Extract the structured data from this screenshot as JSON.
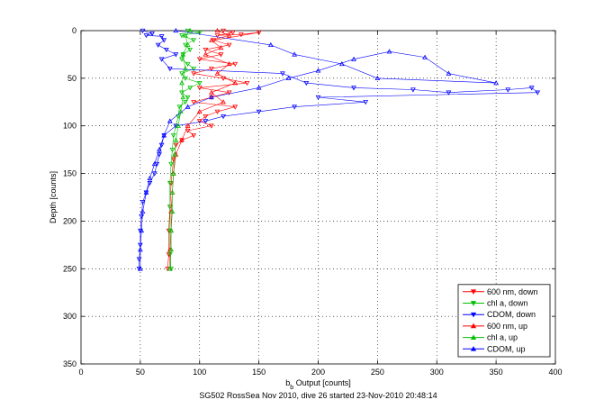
{
  "chart_data": {
    "type": "scatter",
    "xlabel": "b_b Output [counts]",
    "xlabel_main": "b",
    "xlabel_sub": "b",
    "xlabel_rest": " Output [counts]",
    "ylabel": "Depth [counts]",
    "caption": "SG502 RossSea Nov 2010, dive 26 started 23-Nov-2010 20:48:14",
    "xlim": [
      0,
      400
    ],
    "ylim": [
      0,
      350
    ],
    "y_reversed": true,
    "xticks": [
      0,
      50,
      100,
      150,
      200,
      250,
      300,
      350,
      400
    ],
    "yticks": [
      0,
      50,
      100,
      150,
      200,
      250,
      300,
      350
    ],
    "grid": true,
    "legend_position": "lower-right",
    "series": [
      {
        "name": "600 nm, down",
        "color": "#ff0000",
        "marker": "triangle-down",
        "points": [
          [
            120,
            0
          ],
          [
            128,
            2
          ],
          [
            115,
            5
          ],
          [
            135,
            4
          ],
          [
            150,
            2
          ],
          [
            112,
            10
          ],
          [
            125,
            15
          ],
          [
            105,
            20
          ],
          [
            118,
            25
          ],
          [
            100,
            30
          ],
          [
            130,
            35
          ],
          [
            110,
            40
          ],
          [
            95,
            45
          ],
          [
            120,
            50
          ],
          [
            140,
            55
          ],
          [
            100,
            60
          ],
          [
            125,
            65
          ],
          [
            110,
            70
          ],
          [
            95,
            75
          ],
          [
            130,
            80
          ],
          [
            115,
            85
          ],
          [
            105,
            90
          ],
          [
            100,
            95
          ],
          [
            110,
            100
          ],
          [
            90,
            105
          ],
          [
            95,
            110
          ],
          [
            85,
            115
          ],
          [
            80,
            120
          ],
          [
            78,
            135
          ],
          [
            76,
            160
          ],
          [
            75,
            185
          ],
          [
            74,
            210
          ],
          [
            74,
            235
          ],
          [
            73,
            250
          ]
        ]
      },
      {
        "name": "chl a, down",
        "color": "#00c000",
        "marker": "triangle-down",
        "points": [
          [
            90,
            0
          ],
          [
            100,
            2
          ],
          [
            85,
            5
          ],
          [
            95,
            10
          ],
          [
            88,
            15
          ],
          [
            92,
            20
          ],
          [
            86,
            25
          ],
          [
            85,
            30
          ],
          [
            90,
            35
          ],
          [
            95,
            40
          ],
          [
            85,
            45
          ],
          [
            88,
            50
          ],
          [
            100,
            55
          ],
          [
            92,
            60
          ],
          [
            85,
            65
          ],
          [
            90,
            70
          ],
          [
            88,
            75
          ],
          [
            83,
            80
          ],
          [
            82,
            90
          ],
          [
            80,
            100
          ],
          [
            78,
            110
          ],
          [
            77,
            125
          ],
          [
            76,
            140
          ],
          [
            75,
            160
          ],
          [
            75,
            185
          ],
          [
            75,
            210
          ],
          [
            75,
            235
          ],
          [
            76,
            250
          ]
        ]
      },
      {
        "name": "CDOM, down",
        "color": "#0000ff",
        "marker": "triangle-down",
        "points": [
          [
            52,
            0
          ],
          [
            60,
            3
          ],
          [
            55,
            5
          ],
          [
            68,
            6
          ],
          [
            70,
            10
          ],
          [
            65,
            15
          ],
          [
            72,
            20
          ],
          [
            80,
            25
          ],
          [
            68,
            30
          ],
          [
            75,
            40
          ],
          [
            170,
            45
          ],
          [
            190,
            55
          ],
          [
            230,
            60
          ],
          [
            280,
            62
          ],
          [
            310,
            65
          ],
          [
            360,
            62
          ],
          [
            380,
            60
          ],
          [
            385,
            65
          ],
          [
            200,
            70
          ],
          [
            240,
            75
          ],
          [
            180,
            80
          ],
          [
            150,
            85
          ],
          [
            120,
            90
          ],
          [
            105,
            95
          ],
          [
            80,
            100
          ],
          [
            70,
            110
          ],
          [
            68,
            120
          ],
          [
            66,
            130
          ],
          [
            64,
            140
          ],
          [
            62,
            150
          ],
          [
            58,
            160
          ],
          [
            55,
            170
          ],
          [
            52,
            180
          ],
          [
            51,
            195
          ],
          [
            50,
            210
          ],
          [
            50,
            225
          ],
          [
            49,
            240
          ],
          [
            49,
            250
          ]
        ]
      },
      {
        "name": "600 nm, up",
        "color": "#ff0000",
        "marker": "triangle-up",
        "points": [
          [
            75,
            250
          ],
          [
            75,
            230
          ],
          [
            76,
            210
          ],
          [
            76,
            190
          ],
          [
            77,
            170
          ],
          [
            78,
            150
          ],
          [
            80,
            130
          ],
          [
            85,
            115
          ],
          [
            90,
            100
          ],
          [
            100,
            85
          ],
          [
            120,
            75
          ],
          [
            110,
            65
          ],
          [
            130,
            55
          ],
          [
            115,
            45
          ],
          [
            125,
            35
          ],
          [
            105,
            25
          ],
          [
            118,
            18
          ],
          [
            110,
            10
          ],
          [
            125,
            5
          ],
          [
            115,
            0
          ]
        ]
      },
      {
        "name": "chl a, up",
        "color": "#00c000",
        "marker": "triangle-up",
        "points": [
          [
            75,
            250
          ],
          [
            76,
            230
          ],
          [
            76,
            210
          ],
          [
            77,
            190
          ],
          [
            77,
            170
          ],
          [
            78,
            150
          ],
          [
            79,
            130
          ],
          [
            80,
            115
          ],
          [
            82,
            100
          ],
          [
            84,
            85
          ],
          [
            86,
            70
          ],
          [
            85,
            55
          ],
          [
            88,
            40
          ],
          [
            86,
            25
          ],
          [
            90,
            15
          ],
          [
            88,
            5
          ],
          [
            92,
            0
          ]
        ]
      },
      {
        "name": "CDOM, up",
        "color": "#0000ff",
        "marker": "triangle-up",
        "points": [
          [
            50,
            250
          ],
          [
            50,
            230
          ],
          [
            51,
            210
          ],
          [
            52,
            190
          ],
          [
            55,
            170
          ],
          [
            58,
            155
          ],
          [
            62,
            140
          ],
          [
            66,
            125
          ],
          [
            70,
            110
          ],
          [
            75,
            95
          ],
          [
            90,
            80
          ],
          [
            110,
            70
          ],
          [
            150,
            60
          ],
          [
            175,
            50
          ],
          [
            200,
            42
          ],
          [
            230,
            30
          ],
          [
            260,
            22
          ],
          [
            290,
            28
          ],
          [
            310,
            45
          ],
          [
            350,
            55
          ],
          [
            250,
            50
          ],
          [
            220,
            35
          ],
          [
            180,
            25
          ],
          [
            160,
            15
          ],
          [
            80,
            0
          ]
        ]
      }
    ]
  }
}
